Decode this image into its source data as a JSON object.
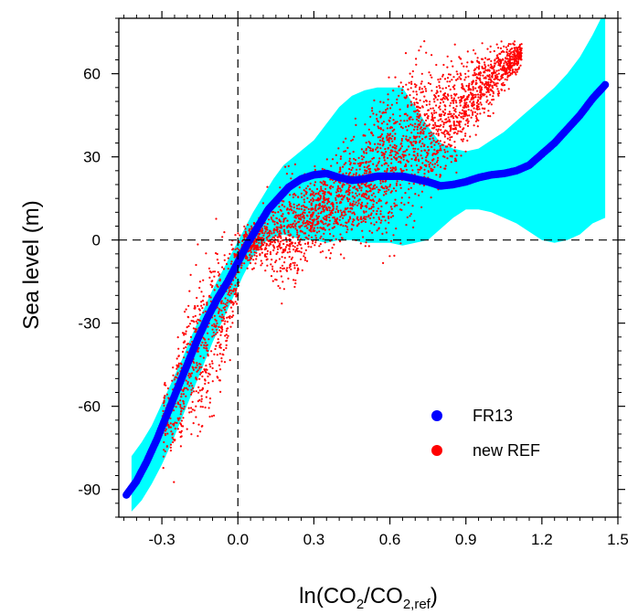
{
  "chart_data": {
    "type": "scatter",
    "xlabel_base": "ln(CO",
    "xlabel_sub1": "2",
    "xlabel_mid": "/CO",
    "xlabel_sub2": "2,ref",
    "xlabel_end": ")",
    "ylabel": "Sea level (m)",
    "xlim": [
      -0.47,
      1.5
    ],
    "ylim": [
      -100,
      80
    ],
    "xticks": [
      -0.3,
      0.0,
      0.3,
      0.6,
      0.9,
      1.2,
      1.5
    ],
    "xtick_labels": [
      "-0.3",
      "0.0",
      "0.3",
      "0.6",
      "0.9",
      "1.2",
      "1.5"
    ],
    "yticks": [
      -90,
      -60,
      -30,
      0,
      30,
      60
    ],
    "ytick_labels": [
      "-90",
      "-60",
      "-30",
      "0",
      "30",
      "60"
    ],
    "reference_lines": [
      {
        "axis": "x",
        "value": 0,
        "style": "dashed"
      },
      {
        "axis": "y",
        "value": 0,
        "style": "dashed"
      }
    ],
    "legend_position": "bottom-right",
    "series": [
      {
        "name": "FR13",
        "color": "#0000ff",
        "kind": "curve",
        "x": [
          -0.44,
          -0.4,
          -0.36,
          -0.32,
          -0.28,
          -0.24,
          -0.2,
          -0.16,
          -0.12,
          -0.08,
          -0.04,
          0.0,
          0.04,
          0.08,
          0.12,
          0.16,
          0.2,
          0.25,
          0.3,
          0.35,
          0.4,
          0.45,
          0.5,
          0.55,
          0.6,
          0.65,
          0.7,
          0.75,
          0.8,
          0.85,
          0.9,
          0.95,
          1.0,
          1.05,
          1.1,
          1.15,
          1.2,
          1.25,
          1.3,
          1.35,
          1.4,
          1.45
        ],
        "values": [
          -92,
          -87,
          -80,
          -72,
          -63,
          -54,
          -45,
          -36,
          -28,
          -21,
          -15,
          -8,
          -1,
          5,
          11,
          15,
          19,
          22,
          23.5,
          24,
          22.5,
          21.5,
          22,
          23,
          23,
          23,
          22,
          21,
          19.5,
          20,
          21,
          22.5,
          23.5,
          24,
          25,
          27,
          31,
          35,
          40,
          45,
          51,
          56
        ]
      },
      {
        "name": "new REF",
        "color": "#ff0000",
        "kind": "scatter"
      }
    ],
    "band": {
      "color": "#00ffff",
      "x": [
        -0.42,
        -0.38,
        -0.34,
        -0.3,
        -0.26,
        -0.22,
        -0.18,
        -0.14,
        -0.1,
        -0.06,
        -0.02,
        0.02,
        0.06,
        0.1,
        0.14,
        0.18,
        0.22,
        0.26,
        0.3,
        0.35,
        0.4,
        0.45,
        0.5,
        0.55,
        0.6,
        0.65,
        0.7,
        0.75,
        0.8,
        0.85,
        0.9,
        0.95,
        1.0,
        1.05,
        1.1,
        1.15,
        1.2,
        1.25,
        1.3,
        1.35,
        1.4,
        1.45
      ],
      "upper": [
        -78,
        -73,
        -67,
        -59,
        -51,
        -43,
        -34,
        -26,
        -18,
        -11,
        -4,
        3,
        10,
        16,
        22,
        27,
        30,
        33,
        36,
        42,
        48,
        52,
        54,
        55,
        55,
        55,
        48,
        41,
        35,
        33,
        32,
        33,
        36,
        39,
        43,
        47,
        51,
        55,
        60,
        66,
        74,
        83
      ],
      "lower": [
        -98,
        -94,
        -88,
        -81,
        -73,
        -64,
        -55,
        -46,
        -37,
        -29,
        -21,
        -13,
        -6,
        -1,
        1,
        2,
        1,
        0,
        0,
        -1,
        0,
        0,
        -1,
        -1,
        -1,
        -2,
        -1,
        0,
        4,
        8,
        11,
        11,
        10,
        8,
        6,
        3,
        0,
        -1,
        0,
        2,
        6,
        8
      ]
    }
  }
}
